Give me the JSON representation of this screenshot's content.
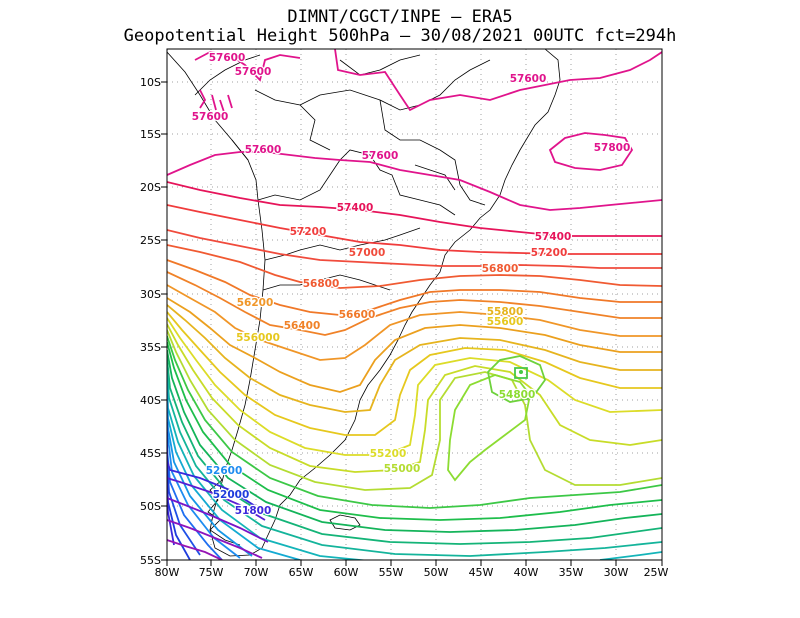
{
  "title_line1": "DIMNT/CGCT/INPE –  ERA5",
  "title_line2": "Geopotential Height 500hPa –  30/08/2021 00UTC fct=294h",
  "map": {
    "lon_range": [
      -80,
      -25
    ],
    "lat_range": [
      -55,
      -7
    ],
    "lon_ticks": [
      "80W",
      "75W",
      "70W",
      "65W",
      "60W",
      "55W",
      "50W",
      "45W",
      "40W",
      "35W",
      "30W",
      "25W"
    ],
    "lat_ticks": [
      "10S",
      "15S",
      "20S",
      "25S",
      "30S",
      "35S",
      "40S",
      "45S",
      "50S",
      "55S"
    ],
    "grid": "dotted"
  },
  "contour_labels": [
    {
      "text": "57600",
      "color": "#e0148c"
    },
    {
      "text": "57600",
      "color": "#e0148c"
    },
    {
      "text": "57600",
      "color": "#e0148c"
    },
    {
      "text": "57600",
      "color": "#e0148c"
    },
    {
      "text": "57600",
      "color": "#e0148c"
    },
    {
      "text": "57800",
      "color": "#e0148c"
    },
    {
      "text": "57600",
      "color": "#e0148c"
    },
    {
      "text": "57400",
      "color": "#e6145a"
    },
    {
      "text": "57400",
      "color": "#e6145a"
    },
    {
      "text": "57200",
      "color": "#f03c3c"
    },
    {
      "text": "57200",
      "color": "#f03c3c"
    },
    {
      "text": "57000",
      "color": "#f04b3c"
    },
    {
      "text": "56800",
      "color": "#f05a32"
    },
    {
      "text": "56800",
      "color": "#f05a32"
    },
    {
      "text": "56600",
      "color": "#f07828"
    },
    {
      "text": "56400",
      "color": "#f08228"
    },
    {
      "text": "56200",
      "color": "#f09628"
    },
    {
      "text": "55800",
      "color": "#e6b41e"
    },
    {
      "text": "55600",
      "color": "#e6c81e"
    },
    {
      "text": "556000",
      "color": "#e6c81e"
    },
    {
      "text": "55200",
      "color": "#dcdc28"
    },
    {
      "text": "55000",
      "color": "#b4dc32"
    },
    {
      "text": "54800",
      "color": "#8cdc32"
    },
    {
      "text": "52600",
      "color": "#1e8cf0"
    },
    {
      "text": "52000",
      "color": "#1e3cdc"
    },
    {
      "text": "51800",
      "color": "#3c28dc"
    }
  ]
}
